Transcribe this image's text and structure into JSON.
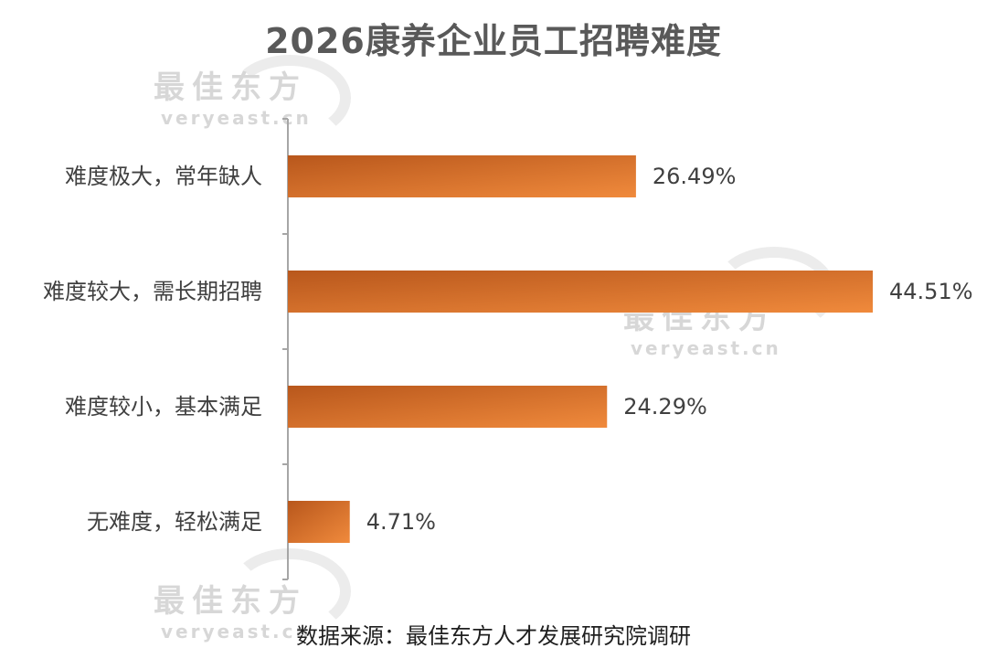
{
  "title": "2026康养企业员工招聘难度",
  "source": "数据来源：最佳东方人才发展研究院调研",
  "watermark": {
    "cn": "最佳东方",
    "en": "veryeast.cn"
  },
  "colors": {
    "bar_dark": "#b8571c",
    "bar_light": "#f08a3c",
    "axis": "#a6a6a6",
    "text": "#404040",
    "title": "#595959",
    "watermark": "#d7d7d7"
  },
  "chart_data": {
    "type": "bar",
    "orientation": "horizontal",
    "title": "2026康养企业员工招聘难度",
    "categories": [
      "难度极大，常年缺人",
      "难度较大，需长期招聘",
      "难度较小，基本满足",
      "无难度，轻松满足"
    ],
    "values": [
      26.49,
      44.51,
      24.29,
      4.71
    ],
    "value_labels": [
      "26.49%",
      "44.51%",
      "24.29%",
      "4.71%"
    ],
    "unit": "%",
    "xlim": [
      0,
      45
    ],
    "grid": false,
    "legend": "none"
  }
}
